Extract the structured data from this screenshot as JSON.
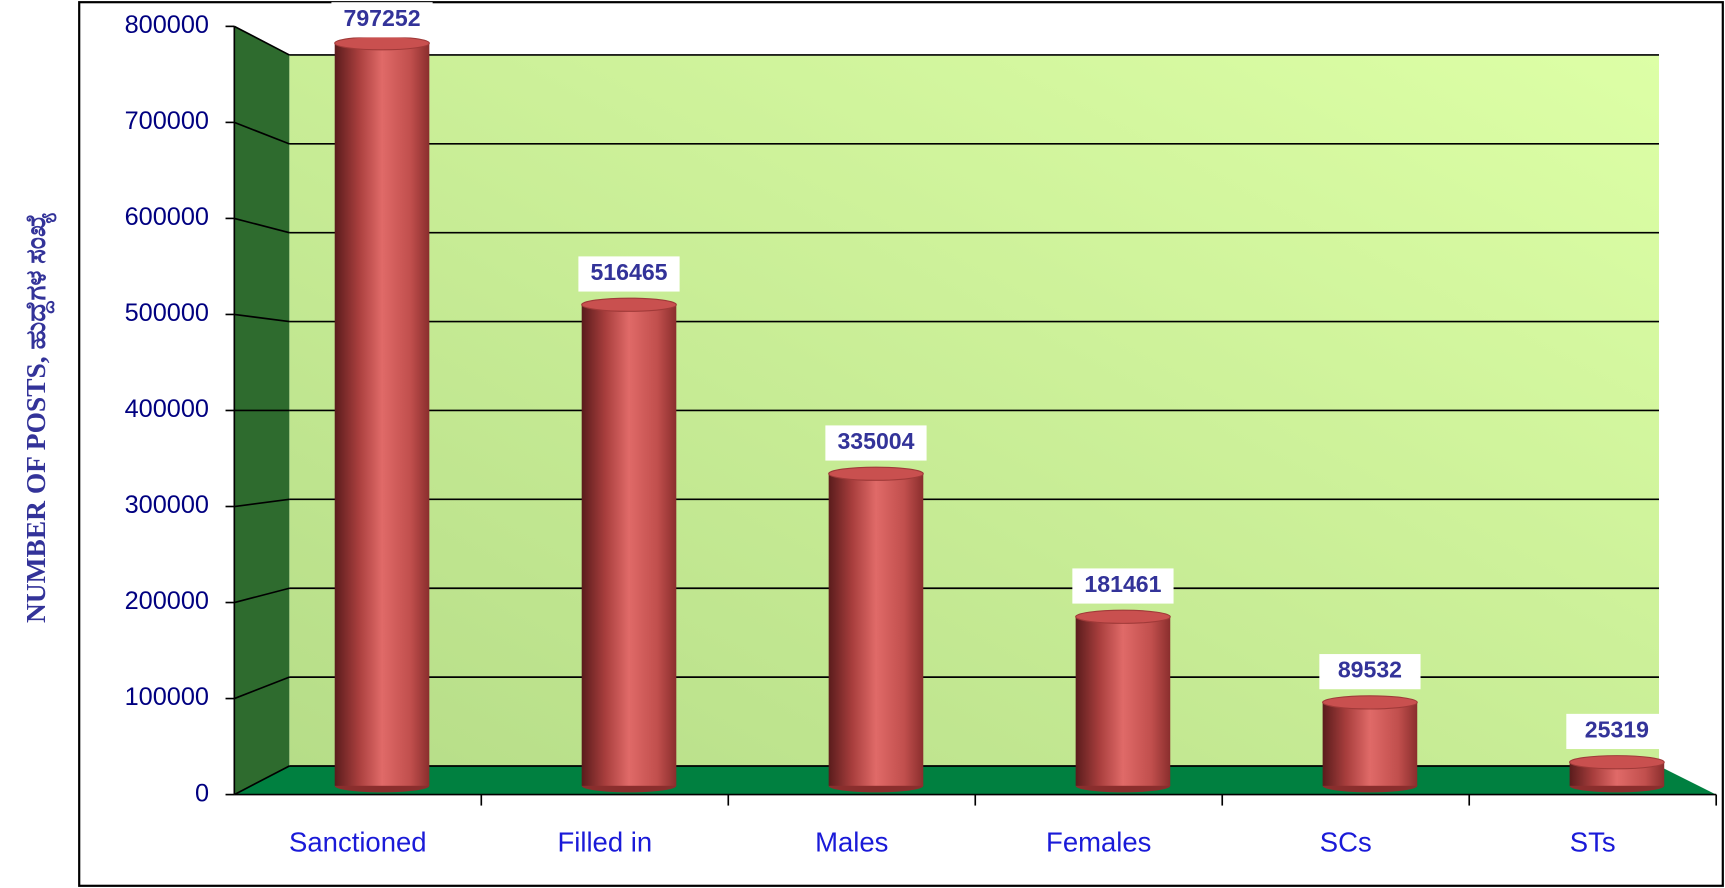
{
  "chart_data": {
    "type": "bar",
    "y_label": "NUMBER OF POSTS,  ಹುದ್ದೆಗಳ ಸಂಖ್ಯೆ",
    "categories": [
      "Sanctioned",
      "Filled in",
      "Males",
      "Females",
      "SCs",
      "STs"
    ],
    "values": [
      797252,
      516465,
      335004,
      181461,
      89532,
      25319
    ],
    "color": "#c9504f",
    "ylim": [
      0,
      800000
    ],
    "yticks": [
      0,
      100000,
      200000,
      300000,
      400000,
      500000,
      600000,
      700000,
      800000
    ],
    "grid": true
  }
}
